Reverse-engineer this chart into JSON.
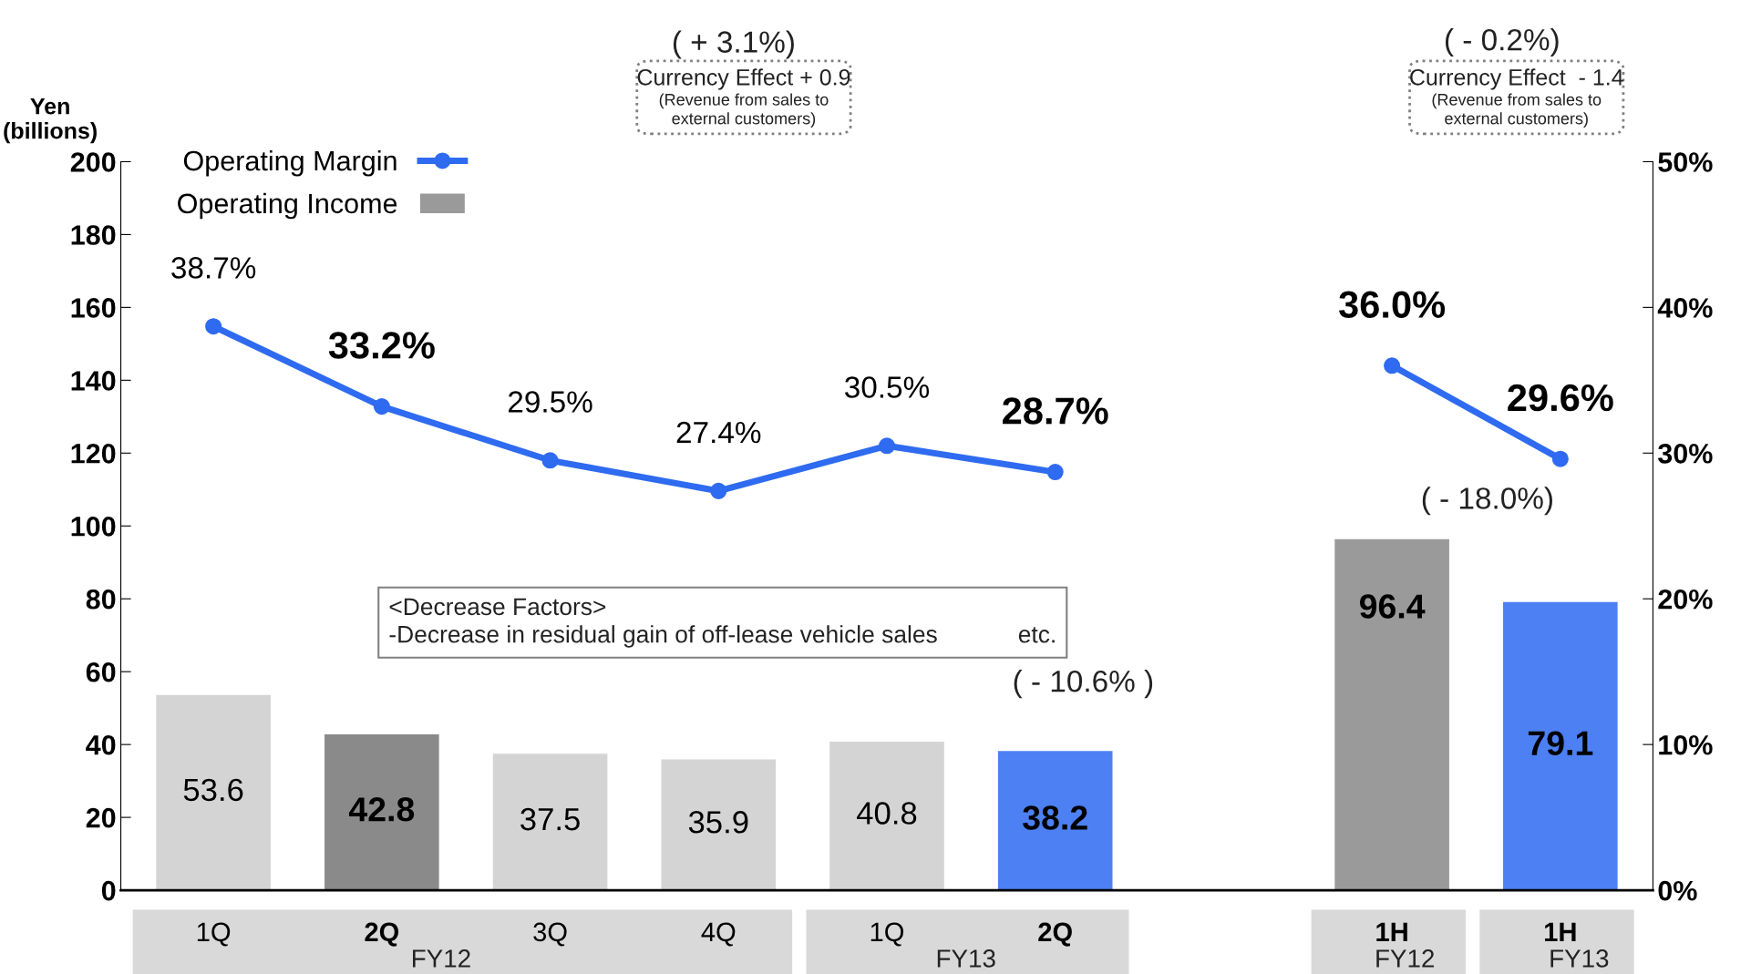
{
  "chart_data": {
    "type": "bar",
    "ylabel": "Yen\n(billions)",
    "categories": [
      "1Q",
      "2Q",
      "3Q",
      "4Q",
      "1Q",
      "2Q",
      null,
      "1H",
      "1H"
    ],
    "series": [
      {
        "name": "Operating Income",
        "color": "#9a9a9a",
        "colors": [
          "#d4d4d4",
          "#8a8a8a",
          "#d4d4d4",
          "#d4d4d4",
          "#d4d4d4",
          "#4d80f2",
          null,
          "#9a9a9a",
          "#4d80f2"
        ],
        "values": [
          53.6,
          42.8,
          37.5,
          35.9,
          40.8,
          38.2,
          null,
          96.4,
          79.1
        ],
        "value_labels": [
          "53.6",
          "42.8",
          "37.5",
          "35.9",
          "40.8",
          "38.2",
          null,
          "96.4",
          "79.1"
        ]
      },
      {
        "name": "Operating Margin",
        "type": "line",
        "axis": "y2",
        "color": "#2f6bf0",
        "marker": "circle",
        "values": [
          38.7,
          33.2,
          29.5,
          27.4,
          30.5,
          28.7,
          null,
          36.0,
          29.6
        ],
        "value_labels": [
          "38.7%",
          "33.2%",
          "29.5%",
          "27.4%",
          "30.5%",
          "28.7%",
          null,
          "36.0%",
          "29.6%"
        ]
      }
    ],
    "ylim": [
      0,
      200
    ],
    "yticks": [
      0,
      20,
      40,
      60,
      80,
      100,
      120,
      140,
      160,
      180,
      200
    ],
    "y2lim": [
      0,
      50
    ],
    "y2ticks": [
      {
        "value": 0,
        "label": "0%"
      },
      {
        "value": 10,
        "label": "10%"
      },
      {
        "value": 20,
        "label": "20%"
      },
      {
        "value": 30,
        "label": "30%"
      },
      {
        "value": 40,
        "label": "40%"
      },
      {
        "value": 50,
        "label": "50%"
      }
    ],
    "legend": "top left",
    "grid": false,
    "annotations": [
      "( + 3.1%)",
      "Currency Effect + 0.9",
      "(Revenue from sales to\nexternal customers)",
      "( - 0.2%)",
      "Currency Effect  - 1.4",
      "(Revenue from sales to\nexternal customers)",
      "( - 18.0%)",
      "<Decrease Factors>\n-Decrease in residual gain of off-lease vehicle sales            etc.",
      "( - 10.6% )",
      "FY12",
      "FY13",
      "FY12",
      "FY13"
    ]
  }
}
